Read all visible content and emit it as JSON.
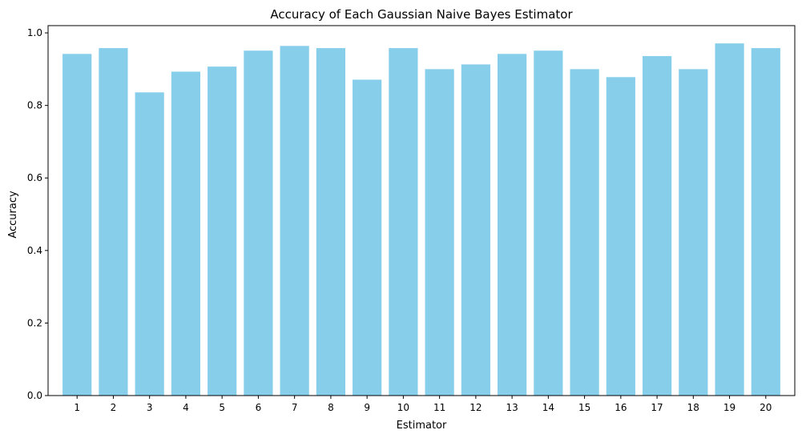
{
  "chart_data": {
    "type": "bar",
    "title": "Accuracy of Each Gaussian Naive Bayes Estimator",
    "xlabel": "Estimator",
    "ylabel": "Accuracy",
    "categories": [
      "1",
      "2",
      "3",
      "4",
      "5",
      "6",
      "7",
      "8",
      "9",
      "10",
      "11",
      "12",
      "13",
      "14",
      "15",
      "16",
      "17",
      "18",
      "19",
      "20"
    ],
    "values": [
      0.942,
      0.958,
      0.836,
      0.893,
      0.907,
      0.951,
      0.964,
      0.958,
      0.871,
      0.958,
      0.9,
      0.913,
      0.942,
      0.951,
      0.9,
      0.878,
      0.936,
      0.9,
      0.971,
      0.958
    ],
    "ylim": [
      0,
      1.02
    ],
    "yticks": [
      0.0,
      0.2,
      0.4,
      0.6,
      0.8,
      1.0
    ],
    "ytick_labels": [
      "0.0",
      "0.2",
      "0.4",
      "0.6",
      "0.8",
      "1.0"
    ],
    "bar_color": "#87ceeb",
    "grid": false,
    "legend": "none"
  }
}
